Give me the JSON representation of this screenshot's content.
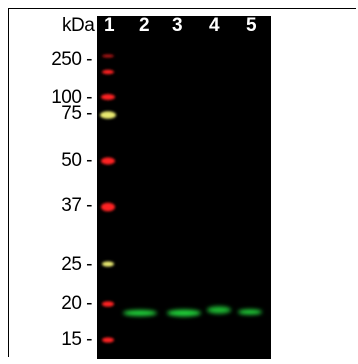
{
  "unit_label": "kDa",
  "lanes": [
    "1",
    "2",
    "3",
    "4",
    "5"
  ],
  "markers": [
    "250 -",
    "100 -",
    "75 -",
    "50 -",
    "37 -",
    "25 -",
    "20 -",
    "15 -"
  ],
  "colors": {
    "background": "#000000",
    "marker_red": "#ff2020",
    "marker_yellow": "#e8e870",
    "band_green": "#22d63a"
  }
}
